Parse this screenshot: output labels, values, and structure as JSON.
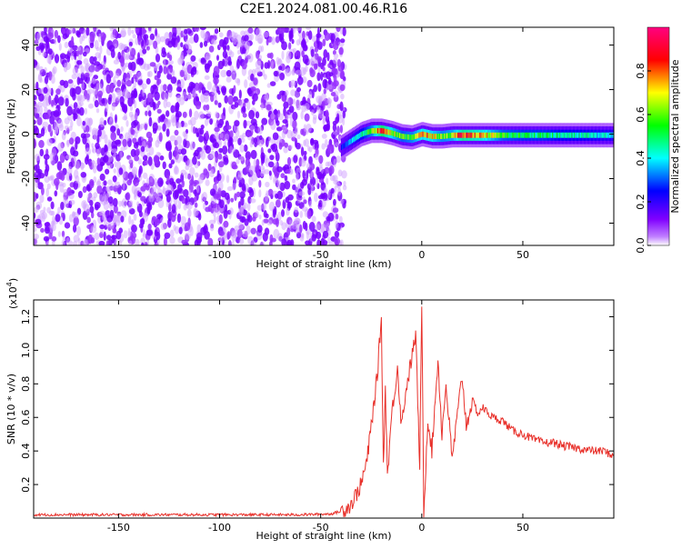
{
  "title": "C2E1.2024.081.00.46.R16",
  "chart_data": [
    {
      "type": "heatmap",
      "xlabel": "Height of straight line (km)",
      "ylabel": "Frequency (Hz)",
      "xlim": [
        -192,
        95
      ],
      "ylim": [
        -50,
        48
      ],
      "xticks": [
        -150,
        -100,
        -50,
        0,
        50
      ],
      "yticks": [
        -40,
        -20,
        0,
        20,
        40
      ],
      "colorbar": {
        "label": "Normalized spectral amplitude",
        "range": [
          0,
          1
        ],
        "ticks": [
          "0.0",
          "0.2",
          "0.4",
          "0.6",
          "0.8"
        ],
        "colors": [
          "#ffffff",
          "#8000ff",
          "#0000ff",
          "#00ffff",
          "#00ff00",
          "#ffff00",
          "#ff0000",
          "#ff0080"
        ]
      },
      "noise_region": {
        "x_range": [
          -192,
          -38
        ],
        "y_range": [
          -50,
          48
        ],
        "amplitude": 0.1
      },
      "ridge": [
        {
          "x": -40,
          "y": -6,
          "amp": 0.25
        },
        {
          "x": -35,
          "y": -3,
          "amp": 0.35
        },
        {
          "x": -30,
          "y": 0,
          "amp": 0.45
        },
        {
          "x": -25,
          "y": 1.5,
          "amp": 0.6
        },
        {
          "x": -20,
          "y": 1.5,
          "amp": 0.9
        },
        {
          "x": -15,
          "y": 0.5,
          "amp": 0.7
        },
        {
          "x": -10,
          "y": -1,
          "amp": 0.55
        },
        {
          "x": -5,
          "y": -1.5,
          "amp": 0.6
        },
        {
          "x": 0,
          "y": 0,
          "amp": 0.75
        },
        {
          "x": 5,
          "y": -1,
          "amp": 0.7
        },
        {
          "x": 10,
          "y": -1,
          "amp": 0.6
        },
        {
          "x": 15,
          "y": -0.5,
          "amp": 0.65
        },
        {
          "x": 20,
          "y": -0.5,
          "amp": 0.85
        },
        {
          "x": 30,
          "y": -0.5,
          "amp": 0.75
        },
        {
          "x": 40,
          "y": -0.5,
          "amp": 0.55
        },
        {
          "x": 50,
          "y": -0.5,
          "amp": 0.5
        },
        {
          "x": 60,
          "y": -0.5,
          "amp": 0.5
        },
        {
          "x": 70,
          "y": -0.5,
          "amp": 0.45
        },
        {
          "x": 80,
          "y": -0.5,
          "amp": 0.45
        },
        {
          "x": 90,
          "y": -0.5,
          "amp": 0.4
        }
      ]
    },
    {
      "type": "line",
      "xlabel": "Height of straight line (km)",
      "ylabel": "SNR (10 * v/v)",
      "y_multiplier": "(x10",
      "y_multiplier_exp": "4",
      "y_multiplier_close": ")",
      "xlim": [
        -192,
        95
      ],
      "ylim": [
        0,
        1.3
      ],
      "xticks": [
        -150,
        -100,
        -50,
        0,
        50
      ],
      "yticks": [
        0.2,
        0.4,
        0.6,
        0.8,
        1.0,
        1.2
      ],
      "color": "#e8302a",
      "series": [
        {
          "x": [
            -192,
            -150,
            -100,
            -60,
            -45,
            -40,
            -35,
            -30,
            -27,
            -25,
            -22,
            -20,
            -19,
            -18,
            -17,
            -15,
            -12,
            -10,
            -8,
            -5,
            -3,
            -1,
            0,
            1,
            3,
            5,
            8,
            10,
            12,
            15,
            18,
            20,
            22,
            25,
            28,
            30,
            35,
            40,
            45,
            50,
            55,
            60,
            65,
            70,
            75,
            80,
            85,
            90,
            95
          ],
          "y": [
            0.02,
            0.02,
            0.02,
            0.02,
            0.025,
            0.04,
            0.08,
            0.2,
            0.35,
            0.55,
            0.85,
            1.2,
            0.3,
            0.8,
            0.25,
            0.6,
            0.9,
            0.55,
            0.75,
            0.95,
            1.1,
            0.3,
            1.27,
            0.02,
            0.6,
            0.4,
            0.95,
            0.5,
            0.8,
            0.35,
            0.65,
            0.85,
            0.55,
            0.7,
            0.62,
            0.66,
            0.6,
            0.58,
            0.52,
            0.5,
            0.47,
            0.45,
            0.45,
            0.43,
            0.42,
            0.41,
            0.4,
            0.4,
            0.37
          ]
        }
      ]
    }
  ]
}
